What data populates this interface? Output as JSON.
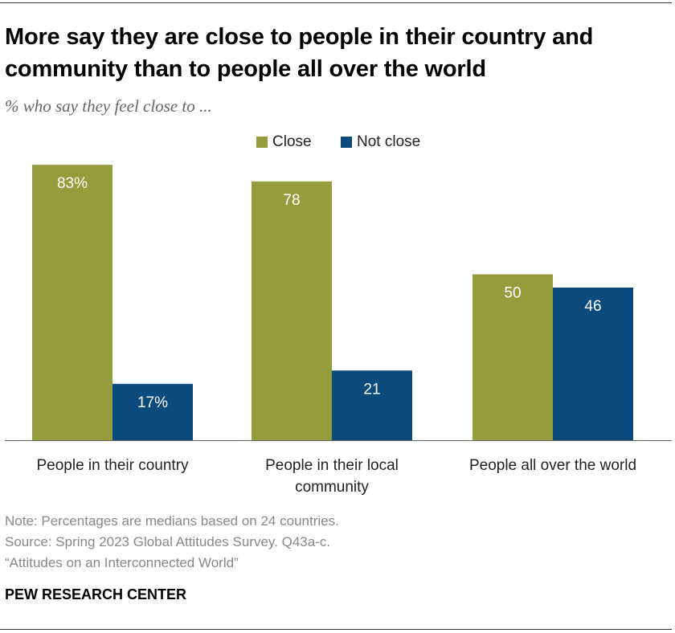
{
  "title": "More say they are close to people in their country and community than to people all over the world",
  "subtitle": "% who say they feel close to ...",
  "colors": {
    "close": "#949c3b",
    "not_close": "#0b4a7d"
  },
  "chart_data": {
    "type": "bar",
    "categories": [
      "People in their country",
      "People in their local community",
      "People all over the world"
    ],
    "category_lines": [
      [
        "People in their country"
      ],
      [
        "People in their local",
        "community"
      ],
      [
        "People all over the world"
      ]
    ],
    "series": [
      {
        "name": "Close",
        "values": [
          83,
          78,
          50
        ],
        "labels": [
          "83%",
          "78",
          "50"
        ]
      },
      {
        "name": "Not close",
        "values": [
          17,
          21,
          46
        ],
        "labels": [
          "17%",
          "21",
          "46"
        ]
      }
    ],
    "ylim": [
      0,
      100
    ],
    "legend": "top-center"
  },
  "notes": {
    "note": "Note: Percentages are medians based on 24 countries.",
    "source": "Source: Spring 2023 Global Attitudes Survey. Q43a-c.",
    "report": "“Attitudes on an Interconnected World”"
  },
  "brand": "PEW RESEARCH CENTER"
}
